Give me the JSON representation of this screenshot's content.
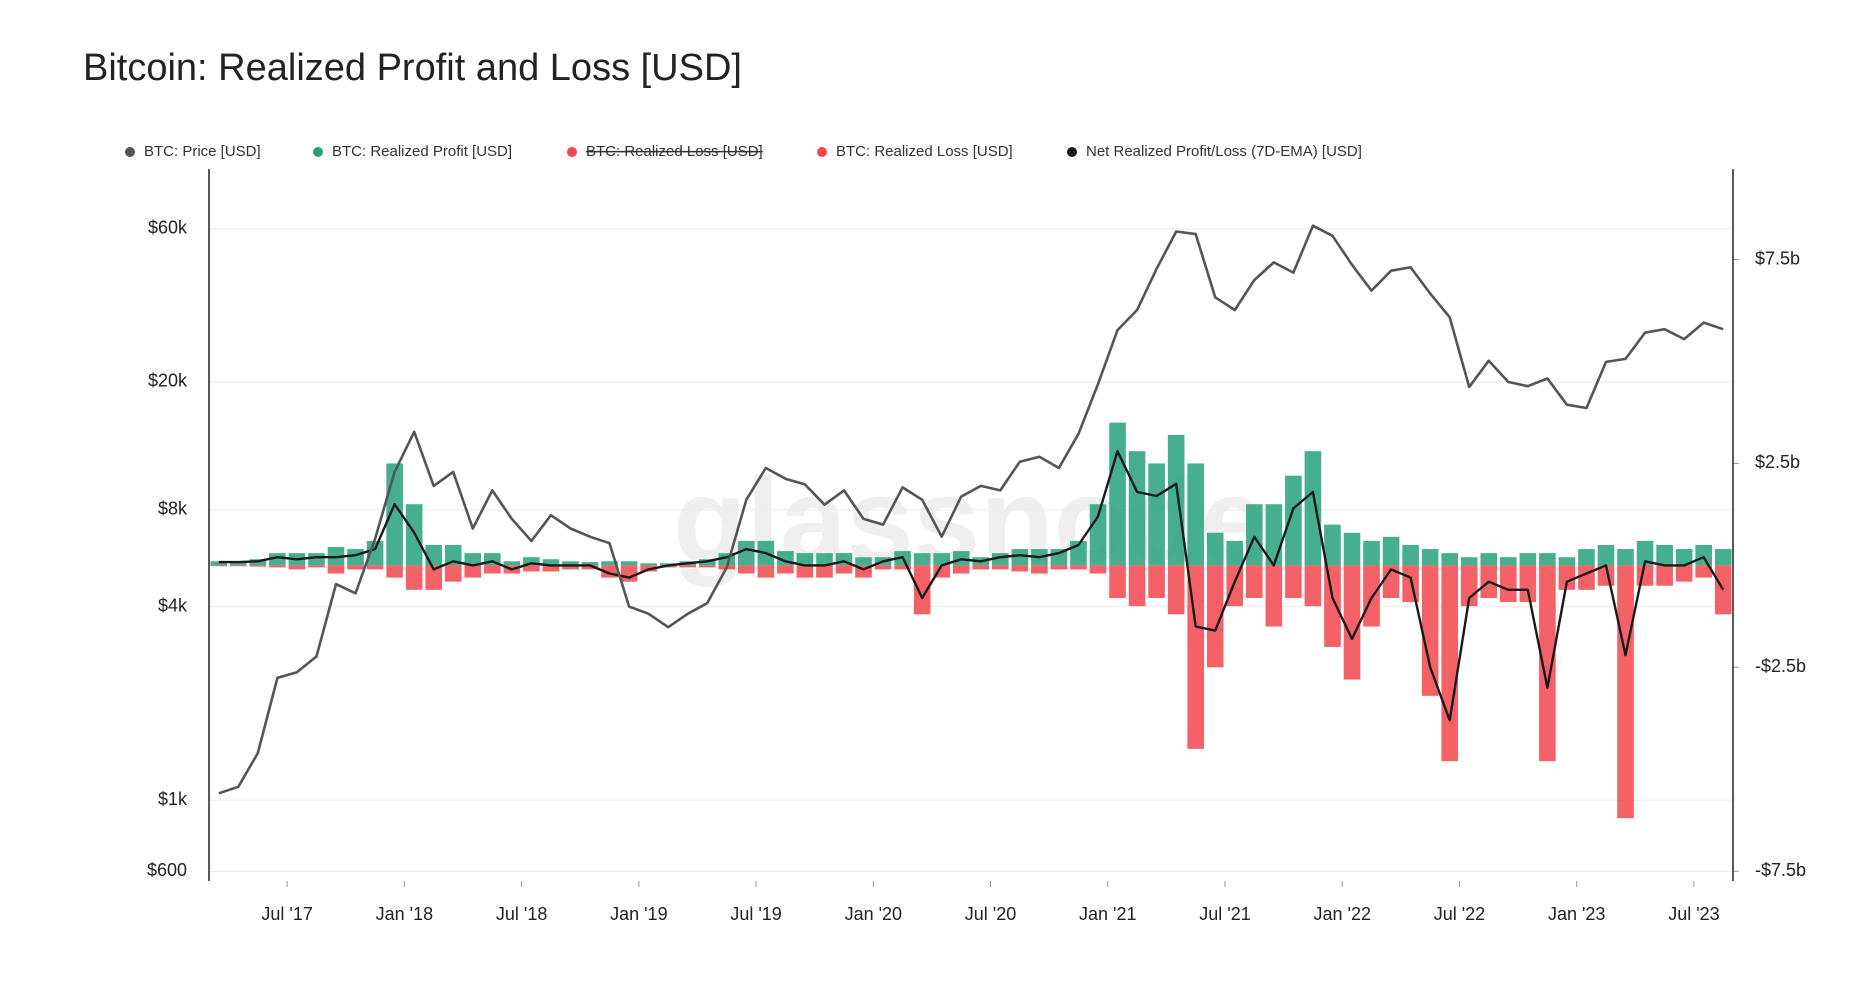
{
  "chart_data": {
    "type": "line",
    "title": "Bitcoin: Realized Profit and Loss [USD]",
    "watermark": "glassnode",
    "x": [
      "2017-03",
      "2017-04",
      "2017-05",
      "2017-06",
      "2017-07",
      "2017-08",
      "2017-09",
      "2017-10",
      "2017-11",
      "2017-12",
      "2018-01",
      "2018-02",
      "2018-03",
      "2018-04",
      "2018-05",
      "2018-06",
      "2018-07",
      "2018-08",
      "2018-09",
      "2018-10",
      "2018-11",
      "2018-12",
      "2019-01",
      "2019-02",
      "2019-03",
      "2019-04",
      "2019-05",
      "2019-06",
      "2019-07",
      "2019-08",
      "2019-09",
      "2019-10",
      "2019-11",
      "2019-12",
      "2020-01",
      "2020-02",
      "2020-03",
      "2020-04",
      "2020-05",
      "2020-06",
      "2020-07",
      "2020-08",
      "2020-09",
      "2020-10",
      "2020-11",
      "2020-12",
      "2021-01",
      "2021-02",
      "2021-03",
      "2021-04",
      "2021-05",
      "2021-06",
      "2021-07",
      "2021-08",
      "2021-09",
      "2021-10",
      "2021-11",
      "2021-12",
      "2022-01",
      "2022-02",
      "2022-03",
      "2022-04",
      "2022-05",
      "2022-06",
      "2022-07",
      "2022-08",
      "2022-09",
      "2022-10",
      "2022-11",
      "2022-12",
      "2023-01",
      "2023-02",
      "2023-03",
      "2023-04",
      "2023-05",
      "2023-06",
      "2023-07",
      "2023-08"
    ],
    "xlim": [
      "2017-03",
      "2023-09"
    ],
    "xticks": [
      {
        "value": "2017-07",
        "label": "Jul '17"
      },
      {
        "value": "2018-01",
        "label": "Jan '18"
      },
      {
        "value": "2018-07",
        "label": "Jul '18"
      },
      {
        "value": "2019-01",
        "label": "Jan '19"
      },
      {
        "value": "2019-07",
        "label": "Jul '19"
      },
      {
        "value": "2020-01",
        "label": "Jan '20"
      },
      {
        "value": "2020-07",
        "label": "Jul '20"
      },
      {
        "value": "2021-01",
        "label": "Jan '21"
      },
      {
        "value": "2021-07",
        "label": "Jul '21"
      },
      {
        "value": "2022-01",
        "label": "Jan '22"
      },
      {
        "value": "2022-07",
        "label": "Jul '22"
      },
      {
        "value": "2023-01",
        "label": "Jan '23"
      },
      {
        "value": "2023-07",
        "label": "Jul '23"
      }
    ],
    "ylim": [
      560,
      92000
    ],
    "yscale": "log",
    "yticks": [
      {
        "value": 600,
        "label": "$600"
      },
      {
        "value": 1000,
        "label": "$1k"
      },
      {
        "value": 4000,
        "label": "$4k"
      },
      {
        "value": 8000,
        "label": "$8k"
      },
      {
        "value": 20000,
        "label": "$20k"
      },
      {
        "value": 60000,
        "label": "$60k"
      }
    ],
    "y2lim": [
      -7740000000.0,
      9720000000.0
    ],
    "y2ticks": [
      {
        "value": -7500000000.0,
        "label": "-$7.5b"
      },
      {
        "value": -2500000000.0,
        "label": "-$2.5b"
      },
      {
        "value": 2500000000.0,
        "label": "$2.5b"
      },
      {
        "value": 7500000000.0,
        "label": "$7.5b"
      }
    ],
    "grid": true,
    "series": [
      {
        "name": "BTC: Price [USD]",
        "color": "#555555",
        "type": "line",
        "axis": "y",
        "values": [
          1050,
          1100,
          1400,
          2400,
          2500,
          2800,
          4700,
          4400,
          6500,
          10500,
          14000,
          9500,
          10500,
          7000,
          9200,
          7500,
          6400,
          7700,
          7000,
          6600,
          6300,
          4000,
          3800,
          3450,
          3800,
          4100,
          5300,
          8600,
          10800,
          10000,
          9600,
          8300,
          9200,
          7500,
          7200,
          9400,
          8600,
          6600,
          8800,
          9500,
          9200,
          11300,
          11700,
          10800,
          13800,
          19700,
          29000,
          33500,
          45000,
          58800,
          57700,
          36700,
          33500,
          41500,
          47100,
          43800,
          61300,
          57000,
          46300,
          38500,
          44400,
          45500,
          37700,
          31800,
          19300,
          23300,
          20000,
          19400,
          20500,
          17000,
          16600,
          23100,
          23600,
          28500,
          29200,
          27200,
          30600,
          29200
        ]
      },
      {
        "name": "BTC: Realized Profit [USD]",
        "color": "#26a17b",
        "type": "bar",
        "axis": "y2",
        "values": [
          100000000.0,
          100000000.0,
          150000000.0,
          300000000.0,
          300000000.0,
          300000000.0,
          450000000.0,
          400000000.0,
          600000000.0,
          2500000000.0,
          1500000000.0,
          500000000.0,
          500000000.0,
          300000000.0,
          300000000.0,
          100000000.0,
          200000000.0,
          150000000.0,
          100000000.0,
          80000000.0,
          100000000.0,
          100000000.0,
          50000000.0,
          50000000.0,
          100000000.0,
          150000000.0,
          300000000.0,
          600000000.0,
          600000000.0,
          350000000.0,
          300000000.0,
          300000000.0,
          300000000.0,
          200000000.0,
          200000000.0,
          350000000.0,
          300000000.0,
          300000000.0,
          350000000.0,
          200000000.0,
          300000000.0,
          400000000.0,
          400000000.0,
          400000000.0,
          600000000.0,
          1500000000.0,
          3500000000.0,
          2800000000.0,
          2500000000.0,
          3200000000.0,
          2500000000.0,
          800000000.0,
          600000000.0,
          1500000000.0,
          1500000000.0,
          2200000000.0,
          2800000000.0,
          1000000000.0,
          800000000.0,
          600000000.0,
          700000000.0,
          500000000.0,
          400000000.0,
          300000000.0,
          200000000.0,
          300000000.0,
          200000000.0,
          300000000.0,
          300000000.0,
          200000000.0,
          400000000.0,
          500000000.0,
          400000000.0,
          600000000.0,
          500000000.0,
          400000000.0,
          500000000.0,
          400000000.0
        ]
      },
      {
        "name": "BTC: Realized Loss [USD]",
        "color": "#f2474d",
        "type": "bar",
        "axis": "y2",
        "values": [
          -20000000.0,
          -20000000.0,
          -30000000.0,
          -50000000.0,
          -100000000.0,
          -50000000.0,
          -200000000.0,
          -100000000.0,
          -100000000.0,
          -300000000.0,
          -600000000.0,
          -600000000.0,
          -400000000.0,
          -300000000.0,
          -200000000.0,
          -200000000.0,
          -150000000.0,
          -150000000.0,
          -100000000.0,
          -100000000.0,
          -300000000.0,
          -400000000.0,
          -150000000.0,
          -50000000.0,
          -50000000.0,
          -50000000.0,
          -100000000.0,
          -200000000.0,
          -300000000.0,
          -200000000.0,
          -300000000.0,
          -300000000.0,
          -200000000.0,
          -300000000.0,
          -100000000.0,
          -100000000.0,
          -1200000000.0,
          -300000000.0,
          -200000000.0,
          -100000000.0,
          -100000000.0,
          -150000000.0,
          -200000000.0,
          -100000000.0,
          -100000000.0,
          -200000000.0,
          -800000000.0,
          -1000000000.0,
          -800000000.0,
          -1200000000.0,
          -4500000000.0,
          -2500000000.0,
          -1000000000.0,
          -800000000.0,
          -1500000000.0,
          -800000000.0,
          -1000000000.0,
          -2000000000.0,
          -2800000000.0,
          -1500000000.0,
          -800000000.0,
          -900000000.0,
          -3200000000.0,
          -4800000000.0,
          -1000000000.0,
          -800000000.0,
          -900000000.0,
          -900000000.0,
          -4800000000.0,
          -600000000.0,
          -600000000.0,
          -500000000.0,
          -6200000000.0,
          -500000000.0,
          -500000000.0,
          -400000000.0,
          -300000000.0,
          -1200000000.0
        ]
      },
      {
        "name": "Net Realized Profit/Loss (7D-EMA) [USD]",
        "color": "#1a1a1a",
        "type": "line",
        "axis": "y2",
        "values": [
          80000000.0,
          80000000.0,
          100000000.0,
          200000000.0,
          150000000.0,
          200000000.0,
          200000000.0,
          250000000.0,
          400000000.0,
          1500000000.0,
          800000000.0,
          -100000000.0,
          100000000.0,
          0,
          100000000.0,
          -100000000.0,
          50000000.0,
          0,
          0,
          0,
          -200000000.0,
          -300000000.0,
          -100000000.0,
          0,
          50000000.0,
          100000000.0,
          200000000.0,
          400000000.0,
          300000000.0,
          100000000.0,
          0,
          0,
          100000000.0,
          -100000000.0,
          100000000.0,
          200000000.0,
          -800000000.0,
          0,
          150000000.0,
          100000000.0,
          200000000.0,
          250000000.0,
          200000000.0,
          300000000.0,
          500000000.0,
          1200000000.0,
          2800000000.0,
          1800000000.0,
          1700000000.0,
          2000000000.0,
          -1500000000.0,
          -1600000000.0,
          -400000000.0,
          700000000.0,
          0,
          1400000000.0,
          1800000000.0,
          -800000000.0,
          -1800000000.0,
          -800000000.0,
          -100000000.0,
          -300000000.0,
          -2500000000.0,
          -3800000000.0,
          -800000000.0,
          -400000000.0,
          -600000000.0,
          -600000000.0,
          -3000000000.0,
          -400000000.0,
          -200000000.0,
          0,
          -2200000000.0,
          100000000.0,
          0,
          0,
          200000000.0,
          -600000000.0
        ]
      }
    ],
    "hidden_series": [
      {
        "name": "BTC: Realized Loss [USD]",
        "color": "#f2474d"
      }
    ]
  }
}
